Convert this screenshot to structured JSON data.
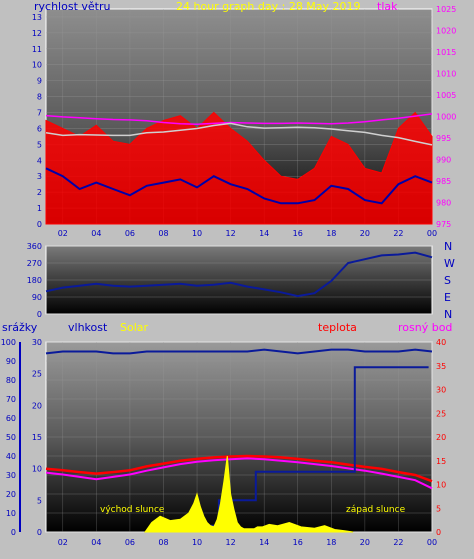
{
  "colors": {
    "wind": "#ff0000",
    "gust": "#0000aa",
    "pressure": "#ff00ff",
    "pressure_gray": "#d0d0d0",
    "direction": "#0a1a9a",
    "humidity": "#0a1a9a",
    "solar": "#ffff00",
    "temperature": "#ff0000",
    "dewpoint": "#ff00ff",
    "rain": "#0a1a9a",
    "axis_blue": "#0000c0",
    "axis_red": "#ff0000",
    "axis_pink": "#ff00ff"
  },
  "chart_data": [
    {
      "type": "line",
      "title": "24 hour graph day : 28 May 2019",
      "left_label": "rychlost větru",
      "right_label": "tlak",
      "x_ticks": [
        "02",
        "04",
        "06",
        "08",
        "10",
        "12",
        "14",
        "16",
        "18",
        "20",
        "22",
        "00"
      ],
      "xlim": [
        1,
        24
      ],
      "left_ticks": [
        "0",
        "1",
        "2",
        "3",
        "4",
        "5",
        "6",
        "7",
        "8",
        "9",
        "10",
        "11",
        "12",
        "13"
      ],
      "ylim_left": [
        0,
        13.5
      ],
      "right_ticks": [
        "975",
        "980",
        "985",
        "990",
        "995",
        "1000",
        "1005",
        "1010",
        "1015",
        "1020",
        "1025"
      ],
      "ylim_right": [
        975,
        1025
      ],
      "series": [
        {
          "key": "pressure",
          "x": [
            1,
            2,
            3,
            4,
            5,
            6,
            7,
            8,
            9,
            10,
            11,
            12,
            13,
            14,
            15,
            16,
            17,
            18,
            19,
            20,
            21,
            22,
            23,
            24
          ],
          "values": [
            1000.2,
            999.9,
            999.7,
            999.5,
            999.3,
            999.2,
            999.0,
            998.6,
            998.3,
            998.2,
            998.4,
            998.6,
            998.5,
            998.4,
            998.4,
            998.5,
            998.4,
            998.3,
            998.5,
            998.8,
            999.2,
            999.6,
            1000.1,
            1000.6
          ]
        },
        {
          "key": "pressure_gray",
          "x": [
            1,
            2,
            3,
            4,
            5,
            6,
            7,
            8,
            9,
            10,
            11,
            12,
            13,
            14,
            15,
            16,
            17,
            18,
            19,
            20,
            21,
            22,
            23,
            24
          ],
          "values": [
            996.2,
            995.6,
            995.8,
            995.7,
            995.6,
            995.6,
            996.2,
            996.4,
            996.8,
            997.2,
            997.9,
            998.4,
            997.6,
            997.3,
            997.4,
            997.5,
            997.4,
            997.1,
            996.7,
            996.3,
            995.6,
            995.1,
            994.2,
            993.4
          ]
        },
        {
          "key": "wind",
          "x": [
            1,
            2,
            3,
            4,
            5,
            6,
            7,
            8,
            9,
            10,
            11,
            12,
            13,
            14,
            15,
            16,
            17,
            18,
            19,
            20,
            21,
            22,
            23,
            24
          ],
          "values": [
            3.5,
            3.0,
            2.2,
            2.6,
            2.2,
            1.8,
            2.4,
            2.6,
            2.8,
            2.3,
            3.0,
            2.5,
            2.2,
            1.6,
            1.3,
            1.3,
            1.5,
            2.4,
            2.2,
            1.5,
            1.3,
            2.5,
            3.0,
            2.6
          ]
        },
        {
          "key": "gust",
          "x": [
            1,
            2,
            3,
            4,
            5,
            6,
            7,
            8,
            9,
            10,
            11,
            12,
            13,
            14,
            15,
            16,
            17,
            18,
            19,
            20,
            21,
            22,
            23,
            24
          ],
          "values": [
            6.5,
            6.0,
            5.5,
            6.2,
            5.2,
            5.0,
            6.0,
            6.5,
            6.8,
            6.0,
            7.0,
            6.0,
            5.2,
            4.0,
            3.0,
            2.8,
            3.5,
            5.5,
            5.0,
            3.5,
            3.2,
            6.0,
            7.0,
            5.5
          ]
        }
      ]
    },
    {
      "type": "line",
      "ylim": [
        0,
        360
      ],
      "y_ticks": [
        "0",
        "90",
        "180",
        "270",
        "360"
      ],
      "right_letters": [
        "N",
        "W",
        "S",
        "E",
        "N"
      ],
      "x_ticks": [
        "02",
        "04",
        "06",
        "08",
        "10",
        "12",
        "14",
        "16",
        "18",
        "20",
        "22",
        "00"
      ],
      "xlim": [
        1,
        24
      ],
      "series": [
        {
          "key": "direction",
          "x": [
            1,
            2,
            3,
            4,
            5,
            6,
            7,
            8,
            9,
            10,
            11,
            12,
            13,
            14,
            15,
            16,
            17,
            18,
            19,
            20,
            21,
            22,
            23,
            24
          ],
          "values": [
            120,
            140,
            150,
            160,
            150,
            145,
            150,
            155,
            160,
            150,
            155,
            165,
            145,
            130,
            115,
            95,
            110,
            175,
            270,
            290,
            310,
            315,
            325,
            300
          ]
        }
      ]
    },
    {
      "type": "line",
      "legend": [
        "srážky",
        "vlhkost",
        "Solar",
        "teplota",
        "rosný bod"
      ],
      "left1_ticks": [
        "0",
        "10",
        "20",
        "30",
        "40",
        "50",
        "60",
        "70",
        "80",
        "90",
        "100"
      ],
      "ylim_left1": [
        0,
        100
      ],
      "left2_ticks": [
        "0",
        "5",
        "10",
        "15",
        "20",
        "25",
        "30"
      ],
      "ylim_left2": [
        0,
        30
      ],
      "right_ticks": [
        "0",
        "5",
        "10",
        "15",
        "20",
        "25",
        "30",
        "35",
        "40"
      ],
      "ylim_right": [
        0,
        40
      ],
      "x_ticks": [
        "02",
        "04",
        "06",
        "08",
        "10",
        "12",
        "14",
        "16",
        "18",
        "20",
        "22",
        "00"
      ],
      "xlim": [
        1,
        24
      ],
      "annotations": {
        "sunrise": "východ slunce",
        "sunset": "západ slunce"
      },
      "series": [
        {
          "key": "humidity",
          "x": [
            1,
            2,
            3,
            4,
            5,
            6,
            7,
            8,
            9,
            10,
            11,
            12,
            13,
            14,
            15,
            16,
            17,
            18,
            19,
            20,
            21,
            22,
            23,
            24
          ],
          "values": [
            94,
            95,
            95,
            95,
            94,
            94,
            95,
            95,
            95,
            95,
            95,
            95,
            95,
            96,
            95,
            94,
            95,
            96,
            96,
            95,
            95,
            95,
            96,
            95
          ]
        },
        {
          "key": "temperature",
          "x": [
            1,
            2,
            3,
            4,
            5,
            6,
            7,
            8,
            9,
            10,
            11,
            12,
            13,
            14,
            15,
            16,
            17,
            18,
            19,
            20,
            21,
            22,
            23,
            24
          ],
          "values": [
            13.3,
            13.0,
            12.6,
            12.3,
            12.6,
            13.0,
            13.8,
            14.4,
            15.0,
            15.4,
            15.7,
            15.9,
            16.0,
            15.9,
            15.7,
            15.4,
            15.0,
            14.7,
            14.2,
            13.7,
            13.3,
            12.6,
            12.0,
            10.7
          ]
        },
        {
          "key": "dewpoint",
          "x": [
            1,
            2,
            3,
            4,
            5,
            6,
            7,
            8,
            9,
            10,
            11,
            12,
            13,
            14,
            15,
            16,
            17,
            18,
            19,
            20,
            21,
            22,
            23,
            24
          ],
          "values": [
            12.5,
            12.1,
            11.6,
            11.1,
            11.6,
            12.1,
            12.9,
            13.6,
            14.3,
            14.8,
            15.1,
            15.3,
            15.5,
            15.3,
            15.0,
            14.7,
            14.3,
            13.9,
            13.4,
            12.9,
            12.3,
            11.6,
            10.9,
            9.2
          ]
        },
        {
          "key": "rain",
          "x": [
            9.0,
            11.3,
            11.3,
            13.5,
            13.5,
            19.4,
            19.4,
            23.8
          ],
          "values": [
            1.0,
            1.0,
            5.0,
            5.0,
            9.5,
            9.5,
            26.0,
            26.0
          ]
        },
        {
          "key": "solar",
          "x": [
            6.9,
            7.3,
            7.8,
            8.4,
            9.0,
            9.5,
            9.8,
            10.0,
            10.2,
            10.4,
            10.6,
            10.8,
            11.0,
            11.2,
            11.4,
            11.6,
            11.8,
            12.0,
            12.2,
            12.4,
            12.6,
            12.8,
            13.0,
            13.2,
            13.4,
            13.6,
            13.9,
            14.3,
            14.8,
            15.5,
            16.2,
            17.0,
            17.6,
            18.2,
            18.8,
            19.3
          ],
          "values": [
            0,
            1.5,
            2.5,
            1.8,
            2.0,
            3.0,
            4.5,
            6.0,
            4.0,
            2.5,
            1.5,
            1.0,
            0.8,
            2.0,
            4.5,
            8.0,
            12.0,
            6.0,
            3.5,
            1.5,
            0.8,
            0.5,
            0.5,
            0.5,
            0.5,
            0.8,
            0.8,
            1.2,
            1.0,
            1.5,
            0.8,
            0.6,
            1.0,
            0.4,
            0.2,
            0
          ]
        }
      ]
    }
  ]
}
